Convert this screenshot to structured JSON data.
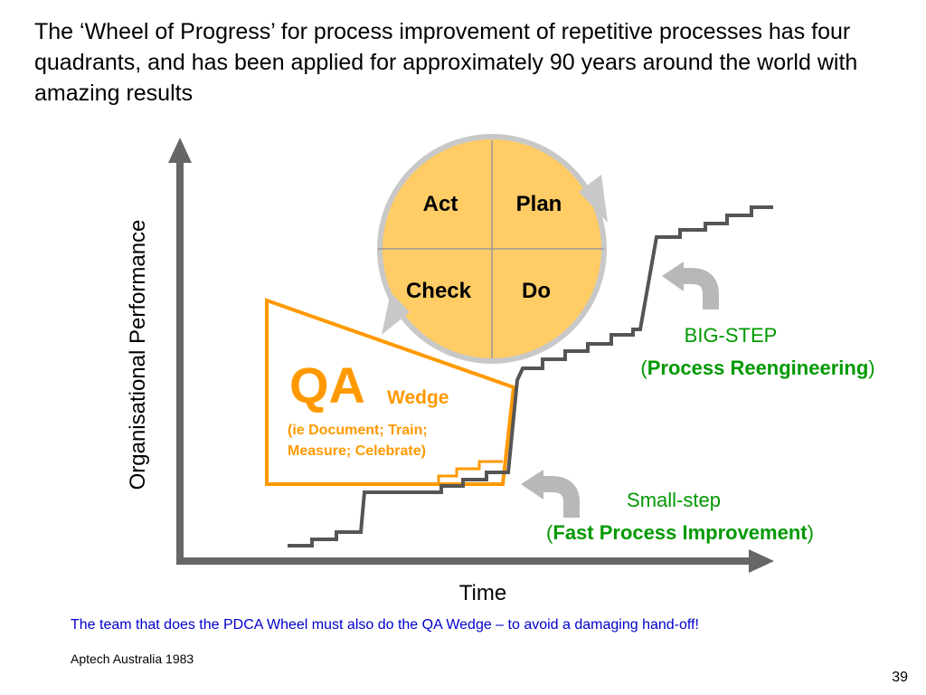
{
  "slide": {
    "title": "The ‘Wheel of Progress’ for process improvement of repetitive processes has four quadrants, and has been applied for approximately 90 years around the world with amazing results",
    "footnote": "The team that does the PDCA Wheel must also do the QA Wedge – to avoid a damaging hand-off!",
    "source": "Aptech Australia 1983",
    "slide_number": "39"
  },
  "diagram": {
    "y_axis_label": "Organisational Performance",
    "x_axis_label": "Time",
    "wheel": {
      "quadrants": {
        "act": "Act",
        "plan": "Plan",
        "check": "Check",
        "do": "Do"
      },
      "fill_color": "#ffcc66",
      "ring_color": "#c8c8c8"
    },
    "wedge": {
      "title": "QA",
      "subtitle": "Wedge",
      "detail_line1": "(ie Document; Train;",
      "detail_line2": "Measure; Celebrate)",
      "color": "#ff9900"
    },
    "big_step": {
      "line1": "BIG-STEP",
      "open_paren": "(",
      "bold": "Process Reengineering",
      "close_paren": ")"
    },
    "small_step": {
      "line1": "Small-step",
      "open_paren": "(",
      "bold": "Fast Process Improvement",
      "close_paren": ")"
    },
    "colors": {
      "axis": "#666666",
      "staircase": "#555555",
      "label_green": "#009900",
      "arrow_gray": "#b8b8b8"
    }
  }
}
